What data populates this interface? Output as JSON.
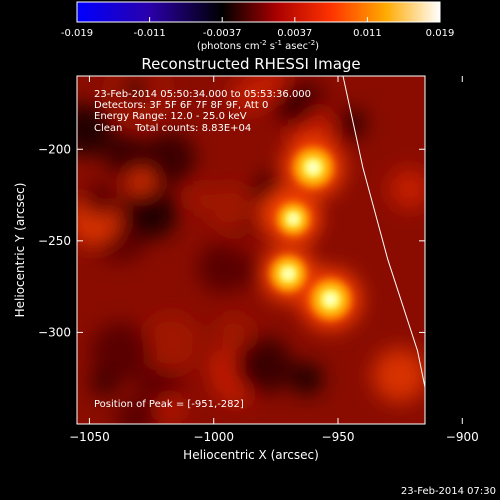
{
  "colorbar": {
    "ticks": [
      "-0.019",
      "-0.011",
      "-0.0037",
      "0.0037",
      "0.011",
      "0.019"
    ],
    "unit_label": "(photons cm",
    "unit_exp1": "-2",
    "unit_mid": " s",
    "unit_exp2": "-1",
    "unit_end": " asec",
    "unit_exp3": "-2",
    "unit_close": ")"
  },
  "title": "Reconstructed RHESSI Image",
  "info": {
    "time_range": "23-Feb-2014 05:50:34.000 to 05:53:36.000",
    "detectors": "Detectors: 3F 5F 6F 7F 8F 9F, Att 0",
    "energy": "Energy Range: 12.0 - 25.0 keV",
    "clean": "Clean    Total counts: 8.83E+04",
    "peak": "Position of Peak = [-951,-282]"
  },
  "timestamp": "23-Feb-2014 07:30",
  "chart_data": {
    "type": "heatmap",
    "title": "Reconstructed RHESSI Image",
    "xlabel": "Heliocentric X (arcsec)",
    "ylabel": "Heliocentric Y (arcsec)",
    "xlim": [
      -1055,
      -915
    ],
    "ylim": [
      -350,
      -160
    ],
    "x_ticks": [
      -1050,
      -1000,
      -950,
      -900
    ],
    "y_ticks": [
      -200,
      -250,
      -300
    ],
    "x_tick_labels": [
      "−1050",
      "−1000",
      "−950",
      "−900"
    ],
    "y_tick_labels": [
      "−200",
      "−250",
      "−300"
    ],
    "color_range": [
      -0.019,
      0.019
    ],
    "colormap": [
      "#0000ff",
      "#000000",
      "#cc0000",
      "#ff6600",
      "#ffee00",
      "#ffffff"
    ],
    "sources": [
      {
        "x": -960,
        "y": -210,
        "intensity": 1.0
      },
      {
        "x": -968,
        "y": -238,
        "intensity": 0.82
      },
      {
        "x": -953,
        "y": -282,
        "intensity": 1.0
      },
      {
        "x": -970,
        "y": -268,
        "intensity": 0.9
      }
    ],
    "limb": [
      [
        -948,
        -160
      ],
      [
        -940,
        -210
      ],
      [
        -930,
        -260
      ],
      [
        -918,
        -310
      ],
      [
        -912,
        -350
      ]
    ],
    "peak": [
      -951,
      -282
    ]
  }
}
